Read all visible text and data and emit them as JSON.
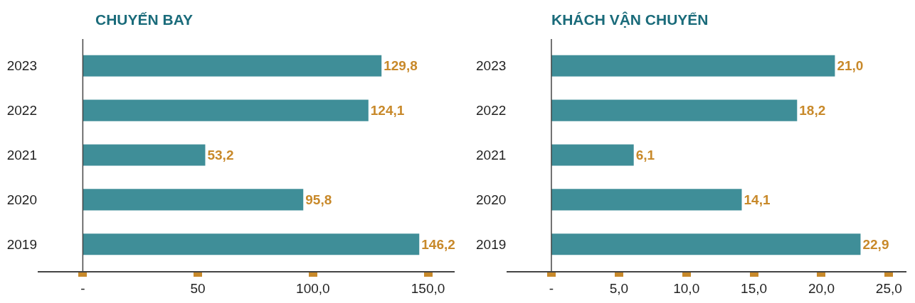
{
  "chart_data": [
    {
      "type": "bar",
      "orientation": "horizontal",
      "title": "CHUYẾN BAY",
      "categories": [
        "2023",
        "2022",
        "2021",
        "2020",
        "2019"
      ],
      "values": [
        129.8,
        124.1,
        53.2,
        95.8,
        146.2
      ],
      "value_labels": [
        "129,8",
        "124,1",
        "53,2",
        "95,8",
        "146,2"
      ],
      "color": "#3f8e98",
      "xlim": [
        -19.6,
        161.6
      ],
      "xticks": [
        {
          "value": 0,
          "label": "-"
        },
        {
          "value": 50,
          "label": "50"
        },
        {
          "value": 100,
          "label": "100,0"
        },
        {
          "value": 150,
          "label": "150,0"
        }
      ]
    },
    {
      "type": "bar",
      "orientation": "horizontal",
      "title": "KHÁCH VẬN CHUYỂN",
      "categories": [
        "2023",
        "2022",
        "2021",
        "2020",
        "2019"
      ],
      "values": [
        21.0,
        18.2,
        6.1,
        14.1,
        22.9
      ],
      "value_labels": [
        "21,0",
        "18,2",
        "6,1",
        "14,1",
        "22,9"
      ],
      "color": "#3f8e98",
      "xlim": [
        -3.3,
        26.3
      ],
      "xticks": [
        {
          "value": 0,
          "label": "-"
        },
        {
          "value": 5,
          "label": "5,0"
        },
        {
          "value": 10,
          "label": "10,0"
        },
        {
          "value": 15,
          "label": "15,0"
        },
        {
          "value": 20,
          "label": "20,0"
        },
        {
          "value": 25,
          "label": "25,0"
        }
      ]
    }
  ]
}
